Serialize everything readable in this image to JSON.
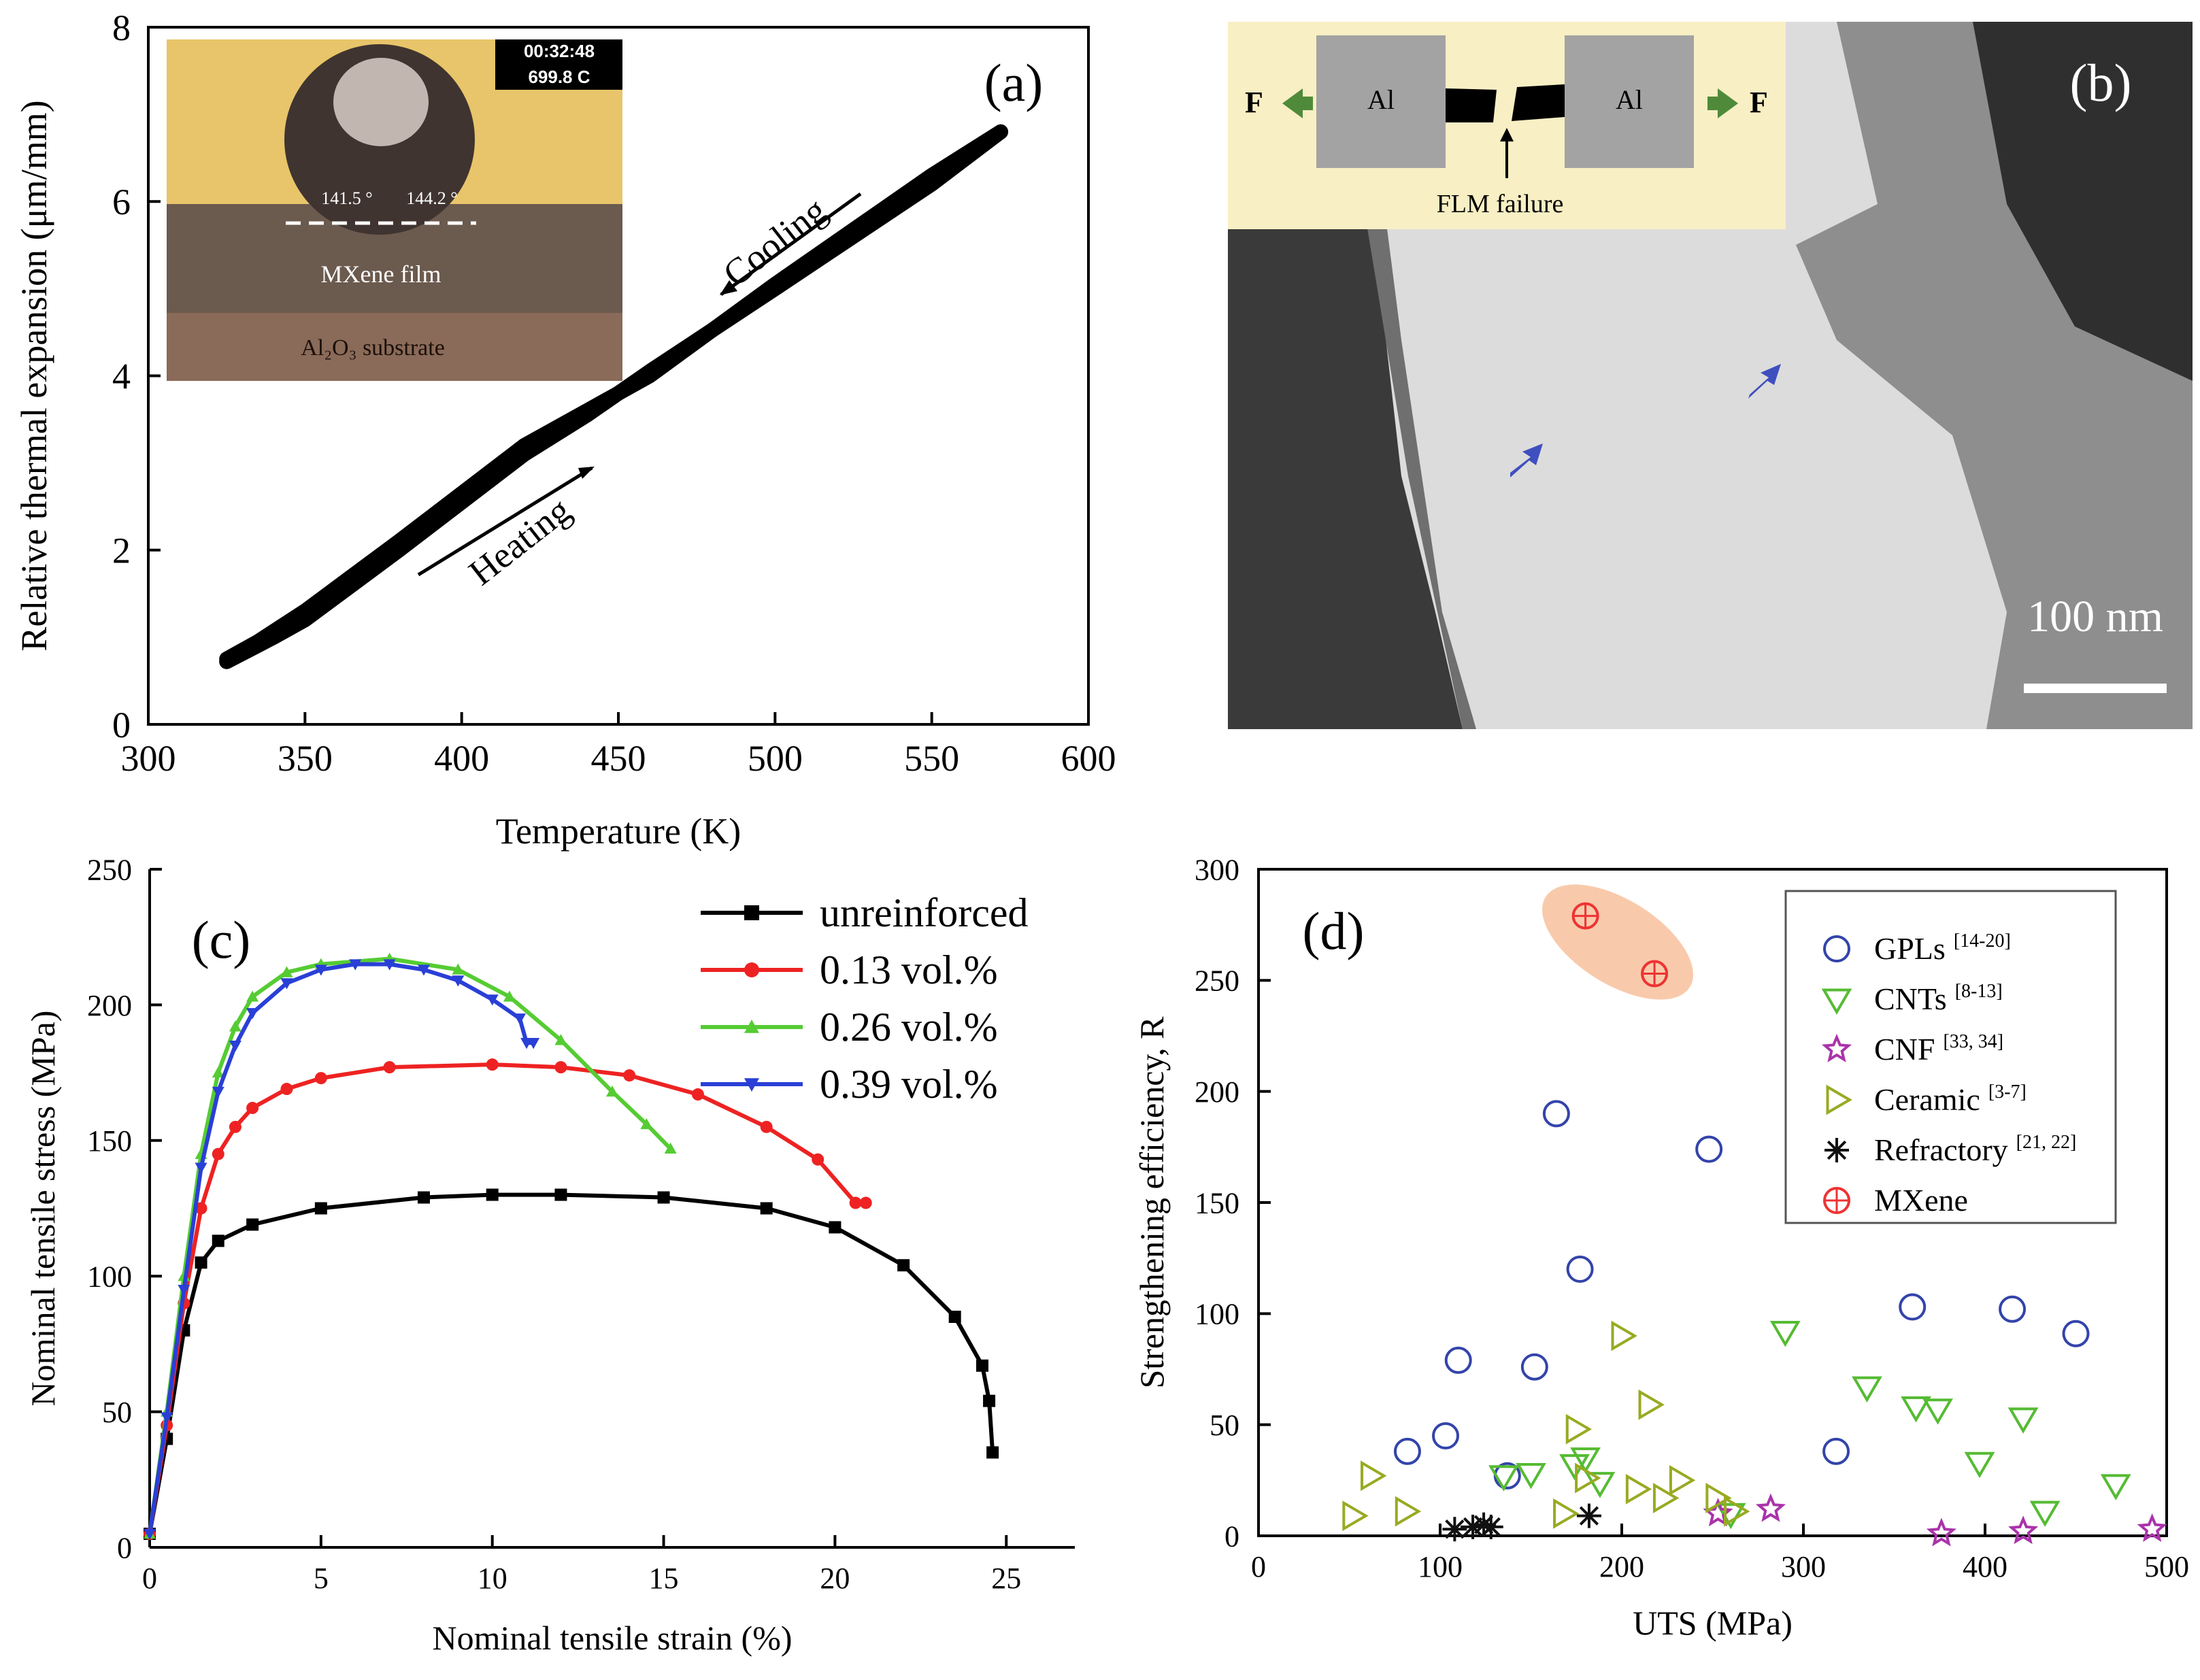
{
  "colors": {
    "axis": "#000000",
    "inset_a_background": "#e8c56a",
    "inset_b_background": "#f8efc4",
    "inset_b_block": "#a3a3a3",
    "arrow_green": "#4f8a3a",
    "tem_arrow_blue": "#3f4fbf",
    "unreinforced": "#000000",
    "vol_013": "#ee2222",
    "vol_026": "#55cc33",
    "vol_039": "#2a3fd6",
    "gpl": "#3344aa",
    "cnt": "#55bb33",
    "cnf": "#aa33aa",
    "ceramic": "#99aa22",
    "refractory": "#111111",
    "mxene": "#ee3333",
    "mxene_highlight": "#f5b388"
  },
  "chart_data": [
    {
      "panel": "(a)",
      "type": "line",
      "xlabel": "Temperature (K)",
      "ylabel": "Relative thermal expansion (μm/mm)",
      "xlim": [
        300,
        600
      ],
      "ylim": [
        0,
        8
      ],
      "xticks": [
        300,
        350,
        400,
        450,
        500,
        550,
        600
      ],
      "yticks": [
        0,
        2,
        4,
        6,
        8
      ],
      "annotations": [
        "Heating",
        "Cooling"
      ],
      "series": [
        {
          "x": [
            325,
            340,
            350,
            380,
            420,
            440,
            460,
            500,
            550,
            572
          ],
          "y": [
            0.72,
            1.0,
            1.2,
            2.0,
            3.1,
            3.55,
            4.05,
            5.0,
            6.2,
            6.8
          ]
        },
        {
          "x": [
            572,
            550,
            500,
            460,
            440,
            420,
            380,
            350,
            335,
            325
          ],
          "y": [
            6.8,
            6.3,
            5.05,
            4.0,
            3.6,
            3.2,
            2.1,
            1.3,
            0.95,
            0.75
          ]
        }
      ],
      "inset": {
        "timestamp": "00:32:48",
        "temperature": "699.8 C",
        "angle_left": "141.5 °",
        "angle_right": "144.2 °",
        "film_label": "MXene film",
        "substrate_label": "Al₂O₃ substrate"
      }
    },
    {
      "panel": "(b)",
      "type": "image",
      "scale_label": "100 nm",
      "inset": {
        "left_block": "Al",
        "right_block": "Al",
        "force_left": "F",
        "force_right": "F",
        "failure_label": "FLM failure"
      }
    },
    {
      "panel": "(c)",
      "type": "line",
      "xlabel": "Nominal tensile strain (%)",
      "ylabel": "Nominal tensile stress (MPa)",
      "xlim": [
        0,
        27
      ],
      "ylim": [
        0,
        250
      ],
      "xticks": [
        0,
        5,
        10,
        15,
        20,
        25
      ],
      "yticks": [
        0,
        50,
        100,
        150,
        200,
        250
      ],
      "legend_position": "top-right",
      "series": [
        {
          "name": "unreinforced",
          "marker": "square",
          "x": [
            0,
            0.5,
            1.0,
            1.5,
            2.0,
            3.0,
            5.0,
            8.0,
            10.0,
            12.0,
            15.0,
            18.0,
            20.0,
            22.0,
            23.5,
            24.3,
            24.5,
            24.6
          ],
          "y": [
            5,
            40,
            80,
            105,
            113,
            119,
            125,
            129,
            130,
            130,
            129,
            125,
            118,
            104,
            85,
            67,
            54,
            35
          ]
        },
        {
          "name": "0.13 vol.%",
          "marker": "circle",
          "x": [
            0,
            0.5,
            1.0,
            1.5,
            2.0,
            2.5,
            3.0,
            4.0,
            5.0,
            7.0,
            10.0,
            12.0,
            14.0,
            16.0,
            18.0,
            19.5,
            20.6,
            20.9
          ],
          "y": [
            5,
            45,
            90,
            125,
            145,
            155,
            162,
            169,
            173,
            177,
            178,
            177,
            174,
            167,
            155,
            143,
            127,
            127
          ]
        },
        {
          "name": "0.26 vol.%",
          "marker": "triangle-up",
          "x": [
            0,
            0.5,
            1.0,
            1.5,
            2.0,
            2.5,
            3.0,
            4.0,
            5.0,
            7.0,
            9.0,
            10.5,
            12.0,
            13.5,
            14.5,
            15.2
          ],
          "y": [
            5,
            50,
            100,
            145,
            175,
            192,
            203,
            212,
            215,
            217,
            213,
            203,
            187,
            168,
            156,
            147
          ]
        },
        {
          "name": "0.39 vol.%",
          "marker": "triangle-down",
          "x": [
            0,
            0.5,
            1.0,
            1.5,
            2.0,
            2.5,
            3.0,
            4.0,
            5.0,
            6.0,
            7.0,
            8.0,
            9.0,
            10.0,
            10.8,
            11.0,
            11.2
          ],
          "y": [
            5,
            48,
            95,
            140,
            168,
            185,
            197,
            208,
            213,
            215,
            215,
            213,
            209,
            202,
            195,
            186,
            186
          ]
        }
      ]
    },
    {
      "panel": "(d)",
      "type": "scatter",
      "xlabel": "UTS (MPa)",
      "ylabel": "Strengthening efficiency, R",
      "xlim": [
        0,
        500
      ],
      "ylim": [
        0,
        300
      ],
      "xticks": [
        0,
        100,
        200,
        300,
        400,
        500
      ],
      "yticks": [
        0,
        50,
        100,
        150,
        200,
        250,
        300
      ],
      "legend_position": "top-right",
      "series": [
        {
          "name": "GPLs",
          "ref": "[14-20]",
          "marker": "circle",
          "points": [
            [
              82,
              38
            ],
            [
              103,
              45
            ],
            [
              110,
              79
            ],
            [
              137,
              27
            ],
            [
              152,
              76
            ],
            [
              164,
              190
            ],
            [
              177,
              120
            ],
            [
              248,
              174
            ],
            [
              318,
              38
            ],
            [
              360,
              103
            ],
            [
              415,
              102
            ],
            [
              450,
              91
            ]
          ]
        },
        {
          "name": "CNTs",
          "ref": "[8-13]",
          "marker": "triangle-down",
          "points": [
            [
              135,
              27
            ],
            [
              150,
              28
            ],
            [
              174,
              32
            ],
            [
              180,
              35
            ],
            [
              188,
              24
            ],
            [
              260,
              10
            ],
            [
              290,
              92
            ],
            [
              335,
              67
            ],
            [
              362,
              58
            ],
            [
              374,
              57
            ],
            [
              397,
              33
            ],
            [
              421,
              53
            ],
            [
              433,
              11
            ],
            [
              472,
              23
            ]
          ]
        },
        {
          "name": "CNF",
          "ref": "[33, 34]",
          "marker": "star",
          "points": [
            [
              253,
              10
            ],
            [
              282,
              12
            ],
            [
              376,
              1
            ],
            [
              421,
              2
            ],
            [
              492,
              3
            ]
          ]
        },
        {
          "name": "Ceramic",
          "ref": "[3-7]",
          "marker": "triangle-right",
          "points": [
            [
              52,
              9
            ],
            [
              62,
              27
            ],
            [
              81,
              11
            ],
            [
              168,
              10
            ],
            [
              175,
              48
            ],
            [
              180,
              26
            ],
            [
              200,
              90
            ],
            [
              208,
              21
            ],
            [
              215,
              59
            ],
            [
              223,
              17
            ],
            [
              232,
              25
            ],
            [
              252,
              17
            ],
            [
              262,
              11
            ]
          ]
        },
        {
          "name": "Refractory",
          "ref": "[21, 22]",
          "marker": "asterisk",
          "points": [
            [
              108,
              3
            ],
            [
              118,
              4
            ],
            [
              124,
              5
            ],
            [
              128,
              4
            ],
            [
              182,
              9
            ]
          ]
        },
        {
          "name": "MXene",
          "ref": "",
          "marker": "circle-plus",
          "points": [
            [
              180,
              279
            ],
            [
              218,
              253
            ]
          ]
        }
      ]
    }
  ]
}
